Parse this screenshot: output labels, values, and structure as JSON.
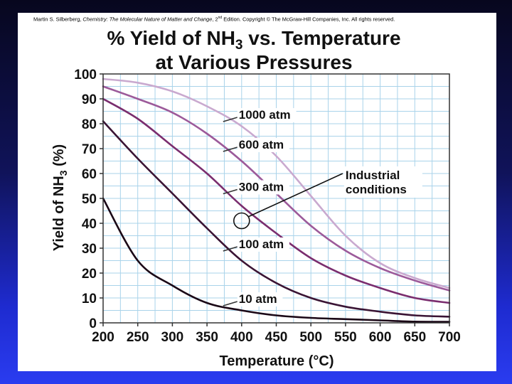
{
  "copyright": {
    "author": "Martin S. Silberberg, ",
    "book": "Chemistry: The Molecular Nature of Matter and Change",
    "edition_num": ", 2",
    "edition_sup": "nd",
    "rest": " Edition.  Copyright © The McGraw-Hill Companies, Inc. All rights reserved."
  },
  "chart_data": {
    "type": "line",
    "title_line1_pre": "% Yield of NH",
    "title_line1_sub": "3",
    "title_line1_post": " vs. Temperature",
    "title_line2": "at Various Pressures",
    "xlabel": "Temperature (°C)",
    "ylabel_pre": "Yield of NH",
    "ylabel_sub": "3",
    "ylabel_post": " (%)",
    "xlim": [
      200,
      700
    ],
    "ylim": [
      0,
      100
    ],
    "xticks": [
      200,
      250,
      300,
      350,
      400,
      450,
      500,
      550,
      600,
      650,
      700
    ],
    "yticks": [
      0,
      10,
      20,
      30,
      40,
      50,
      60,
      70,
      80,
      90,
      100
    ],
    "x": [
      200,
      250,
      300,
      350,
      400,
      450,
      500,
      550,
      600,
      650,
      700
    ],
    "series": [
      {
        "name": "1000 atm",
        "color": "#c9a9cf",
        "values": [
          98,
          96.5,
          93,
          87,
          79,
          67,
          51,
          35,
          24,
          18,
          14
        ],
        "label_at": [
          400,
          82
        ]
      },
      {
        "name": "600 atm",
        "color": "#9c5a9a",
        "values": [
          95,
          90,
          84.5,
          76,
          65,
          52,
          39,
          29,
          22,
          17,
          13
        ],
        "label_at": [
          400,
          70
        ]
      },
      {
        "name": "300 atm",
        "color": "#7a2d6e",
        "values": [
          90,
          82,
          71,
          60,
          47,
          36,
          26,
          19,
          14,
          10,
          8
        ],
        "label_at": [
          400,
          53
        ]
      },
      {
        "name": "100 atm",
        "color": "#3a1434",
        "values": [
          81,
          66,
          52,
          38,
          25,
          16,
          10,
          6.5,
          4.5,
          3,
          2.5
        ],
        "label_at": [
          400,
          30
        ]
      },
      {
        "name": "10 atm",
        "color": "#1a0716",
        "values": [
          50,
          25,
          15,
          8,
          5,
          3,
          2,
          1.5,
          1,
          0.5,
          0.4
        ],
        "label_at": [
          400,
          8
        ]
      }
    ],
    "annotation": {
      "line1": "Industrial",
      "line2": "conditions",
      "circle_at": [
        400,
        41
      ],
      "text_at": [
        550,
        56
      ]
    }
  }
}
